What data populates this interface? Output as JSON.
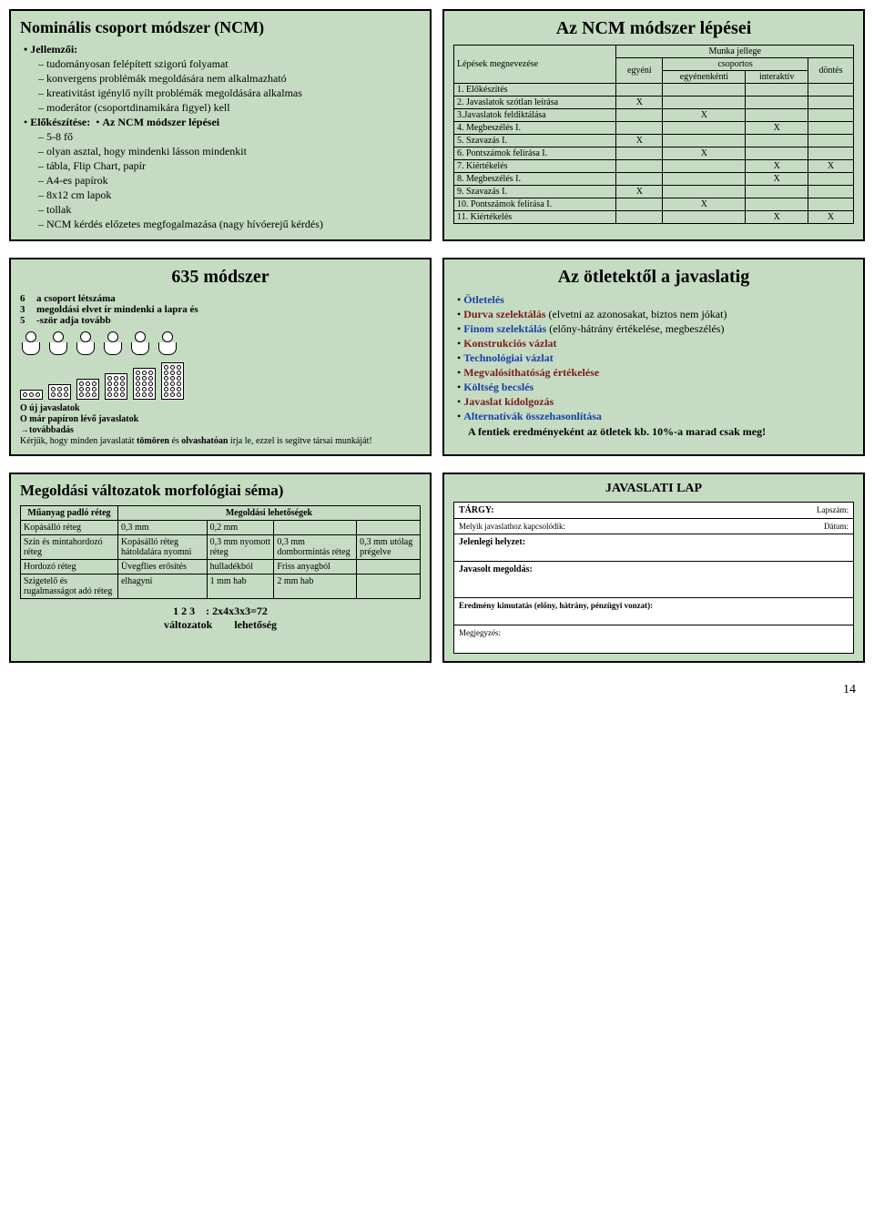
{
  "slides": {
    "s1": {
      "title": "Nominális csoport módszer (NCM)",
      "bul1": "Jellemzői:",
      "d1": "tudományosan felépített szigorú folyamat",
      "d2": "konvergens problémák megoldására nem alkalmazható",
      "d3": "kreativitást igénylő nyílt problémák megoldására alkalmas",
      "d4": "moderátor (csoportdinamikára figyel) kell",
      "bul2": "Előkészítése:",
      "bul2b": "Az NCM módszer lépései",
      "e1": "5-8 fő",
      "e2": "olyan asztal, hogy mindenki lásson mindenkit",
      "e3": "tábla, Flip Chart, papír",
      "e4": "A4-es papírok",
      "e5": "8x12 cm lapok",
      "e6": "tollak",
      "e7": "NCM kérdés előzetes megfogalmazása (nagy hívóerejű kérdés)"
    },
    "s2": {
      "title": "Az NCM módszer lépései",
      "col0": "Lépések megnevezése",
      "col1": "egyéni",
      "col2": "csoportos",
      "col2a": "egyénenkénti",
      "col2b": "interaktív",
      "col3": "döntés",
      "col_head": "Munka jellege",
      "rows": [
        {
          "n": "1. Előkészítés",
          "e": "",
          "a": "",
          "b": "",
          "d": ""
        },
        {
          "n": "2. Javaslatok szótlan leírása",
          "e": "X",
          "a": "",
          "b": "",
          "d": ""
        },
        {
          "n": "3.Javaslatok feldiktálása",
          "e": "",
          "a": "X",
          "b": "",
          "d": ""
        },
        {
          "n": "4. Megbeszélés I.",
          "e": "",
          "a": "",
          "b": "X",
          "d": ""
        },
        {
          "n": "5. Szavazás I.",
          "e": "X",
          "a": "",
          "b": "",
          "d": ""
        },
        {
          "n": "6. Pontszámok felírása I.",
          "e": "",
          "a": "X",
          "b": "",
          "d": ""
        },
        {
          "n": "7. Kiértékelés",
          "e": "",
          "a": "",
          "b": "X",
          "d": "X"
        },
        {
          "n": "8. Megbeszélés I.",
          "e": "",
          "a": "",
          "b": "X",
          "d": ""
        },
        {
          "n": "9. Szavazás I.",
          "e": "X",
          "a": "",
          "b": "",
          "d": ""
        },
        {
          "n": "10. Pontszámok felírása I.",
          "e": "",
          "a": "X",
          "b": "",
          "d": ""
        },
        {
          "n": "11. Kiértékelés",
          "e": "",
          "a": "",
          "b": "X",
          "d": "X"
        }
      ]
    },
    "s3": {
      "title": "635 módszer",
      "defs": [
        {
          "n": "6",
          "t": "a csoport létszáma"
        },
        {
          "n": "3",
          "t": "megoldási elvet ír mindenki a lapra és"
        },
        {
          "n": "5",
          "t": "-ször adja tovább"
        }
      ],
      "leg1": "O új javaslatok",
      "leg2": "O már papíron lévő javaslatok",
      "leg3": "→továbbadás",
      "note": "Kérjük, hogy minden javaslatát tömören és olvashatóan írja le, ezzel is segítve társai munkáját!",
      "note_b1": "tömören",
      "note_b2": "olvashatóan"
    },
    "s4": {
      "title": "Az ötletektől a javaslatig",
      "items": [
        {
          "t": "Ötletelés",
          "c": "blue",
          "s": ""
        },
        {
          "t": "Durva szelektálás",
          "c": "maroon",
          "s": " (elvetni az azonosakat, biztos nem jókat)"
        },
        {
          "t": "Finom szelektálás",
          "c": "blue",
          "s": " (előny-hátrány értékelése, megbeszélés)"
        },
        {
          "t": "Konstrukciós vázlat",
          "c": "maroon",
          "s": ""
        },
        {
          "t": "Technológiai vázlat",
          "c": "blue",
          "s": ""
        },
        {
          "t": "Megvalósíthatóság értékelése",
          "c": "maroon",
          "s": ""
        },
        {
          "t": "Költség becslés",
          "c": "blue",
          "s": ""
        },
        {
          "t": "Javaslat kidolgozás",
          "c": "maroon",
          "s": ""
        },
        {
          "t": "Alternatívák összehasonlítása",
          "c": "blue",
          "s": ""
        }
      ],
      "final": "A fentiek eredményeként az ötletek kb. 10%-a marad csak meg!"
    },
    "s5": {
      "title": "Megoldási változatok morfológiai séma)",
      "hdr1": "Műanyag padló réteg",
      "hdr2": "Megoldási lehetőségek",
      "rows": [
        [
          "Kopásálló réteg",
          "0,3 mm",
          "0,2 mm",
          "",
          ""
        ],
        [
          "Szín és mintahordozó réteg",
          "Kopásálló réteg hátoldalára nyomni",
          "0,3 mm nyomott réteg",
          "0,3 mm dombormintás réteg",
          "0,3 mm utólag prégelve"
        ],
        [
          "Hordozó réteg",
          "Üvegflies erősítés",
          "hulladékból",
          "Friss anyagból",
          ""
        ],
        [
          "Szigetelő és rugalmasságot adó réteg",
          "elhagyni",
          "1 mm hab",
          "2 mm hab",
          ""
        ]
      ],
      "foot1": "1        2        3",
      "foot2": ":   2x4x3x3=72",
      "foot3": "változatok",
      "foot4": "lehetőség"
    },
    "s6": {
      "title": "JAVASLATI LAP",
      "r1a": "TÁRGY:",
      "r1b": "Lapszám:",
      "r2a": "Melyik javaslathoz kapcsolódik:",
      "r2b": "Dátum:",
      "r3": "Jelenlegi helyzet:",
      "r4": "Javasolt megoldás:",
      "r5": "Eredmény kimutatás (előny, hátrány, pénzügyi vonzat):",
      "r6": "Megjegyzés:"
    }
  },
  "pagenum": "14",
  "colors": {
    "bg": "#c5dcc2",
    "blue": "#1a3ea8",
    "maroon": "#7a1a1a"
  }
}
